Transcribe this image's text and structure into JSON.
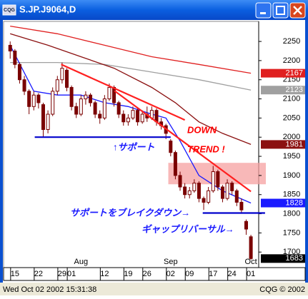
{
  "window": {
    "icon": "CQG",
    "title": "S.JP.J9064,D"
  },
  "status": {
    "left": "Wed Oct 02 2002 15:31:38",
    "right": "CQG © 2002"
  },
  "chart_data": {
    "type": "candlestick",
    "xlim": [
      -1.4,
      52.5
    ],
    "ylim": [
      1665,
      2293
    ],
    "yticks": [
      2250,
      2200,
      2150,
      2100,
      2050,
      2000,
      1950,
      1900,
      1850,
      1800,
      1750,
      1700
    ],
    "xticks": [
      {
        "value": 1,
        "label": "15"
      },
      {
        "value": 6,
        "label": "22"
      },
      {
        "value": 11,
        "label": "29"
      },
      {
        "value": 13,
        "label": "01"
      },
      {
        "value": 20,
        "label": "12"
      },
      {
        "value": 25,
        "label": "19"
      },
      {
        "value": 29,
        "label": "26"
      },
      {
        "value": 34,
        "label": "02"
      },
      {
        "value": 38,
        "label": "09"
      },
      {
        "value": 43,
        "label": "17"
      },
      {
        "value": 47,
        "label": "24"
      },
      {
        "value": 51,
        "label": "01"
      }
    ],
    "month_labels": [
      {
        "value": 15,
        "label": "Aug"
      },
      {
        "value": 34,
        "label": "Sep"
      },
      {
        "value": 51,
        "label": "Oct"
      }
    ],
    "grid": false,
    "candle_color": "#7a0000",
    "open": [
      2240,
      2225,
      2190,
      2150,
      2120,
      2080,
      2110,
      2085,
      2020,
      2060,
      2120,
      2150,
      2175,
      2130,
      2080,
      2060,
      2100,
      2110,
      2090,
      2060,
      2050,
      2100,
      2130,
      2090,
      2060,
      2040,
      2050,
      2070,
      2040,
      2060,
      2050,
      2070,
      2040,
      2030,
      1990,
      1960,
      1900,
      1870,
      1850,
      1860,
      1880,
      1840,
      1830,
      1860,
      1910,
      1870,
      1840,
      1880,
      1860,
      1830,
      1780,
      1740
    ],
    "high": [
      2250,
      2230,
      2195,
      2160,
      2125,
      2120,
      2115,
      2090,
      2070,
      2130,
      2160,
      2195,
      2180,
      2135,
      2090,
      2110,
      2120,
      2115,
      2095,
      2070,
      2110,
      2140,
      2135,
      2095,
      2070,
      2060,
      2080,
      2075,
      2070,
      2080,
      2080,
      2075,
      2050,
      2035,
      1995,
      1965,
      1910,
      1880,
      1870,
      1890,
      1885,
      1845,
      1870,
      1925,
      1915,
      1875,
      1890,
      1885,
      1865,
      1840,
      1785,
      1745
    ],
    "low": [
      2205,
      2180,
      2140,
      2110,
      2060,
      2070,
      2075,
      2000,
      2010,
      2055,
      2110,
      2140,
      2120,
      2070,
      2050,
      2055,
      2085,
      2080,
      2050,
      2035,
      2045,
      2095,
      2080,
      2050,
      2030,
      2030,
      2045,
      2030,
      2035,
      2040,
      2045,
      2030,
      2020,
      1995,
      1950,
      1890,
      1860,
      1840,
      1840,
      1855,
      1830,
      1810,
      1825,
      1855,
      1860,
      1830,
      1835,
      1850,
      1820,
      1800,
      1745,
      1680
    ],
    "close": [
      2225,
      2190,
      2150,
      2120,
      2080,
      2110,
      2090,
      2020,
      2060,
      2120,
      2150,
      2180,
      2130,
      2080,
      2060,
      2100,
      2110,
      2090,
      2060,
      2050,
      2100,
      2130,
      2090,
      2060,
      2040,
      2050,
      2070,
      2040,
      2060,
      2050,
      2070,
      2040,
      2030,
      2010,
      1960,
      1900,
      1870,
      1850,
      1860,
      1880,
      1840,
      1830,
      1860,
      1910,
      1870,
      1840,
      1880,
      1860,
      1830,
      1810,
      1760,
      1683
    ],
    "close_box_color": "#000000",
    "lines": [
      {
        "color": "#e02020",
        "x": [
          0,
          10,
          20,
          30,
          40,
          51
        ],
        "values": [
          2290,
          2270,
          2240,
          2210,
          2190,
          2167
        ]
      },
      {
        "color": "#a0a0a0",
        "x": [
          0,
          10,
          20,
          30,
          40,
          51
        ],
        "values": [
          2195,
          2195,
          2190,
          2170,
          2150,
          2123
        ]
      },
      {
        "color": "#8b1010",
        "x": [
          0,
          8,
          15,
          22,
          30,
          35,
          40,
          45,
          51
        ],
        "values": [
          2270,
          2240,
          2210,
          2180,
          2130,
          2090,
          2040,
          2010,
          1981
        ]
      },
      {
        "color": "#1a1aff",
        "x": [
          0,
          5,
          10,
          15,
          20,
          25,
          30,
          33,
          36,
          40,
          45,
          51
        ],
        "values": [
          2240,
          2120,
          2110,
          2110,
          2090,
          2080,
          2060,
          2050,
          1990,
          1900,
          1860,
          1828
        ]
      }
    ],
    "trendlines": [
      {
        "color": "#ff2020",
        "x": [
          10.8,
          37
        ],
        "values": [
          2190,
          2045
        ]
      },
      {
        "color": "#ff2020",
        "x": [
          22.1,
          51
        ],
        "values": [
          2121,
          1858
        ]
      },
      {
        "color": "#0000cc",
        "x": [
          5.2,
          34
        ],
        "values": [
          2000,
          2000
        ]
      },
      {
        "color": "#0000cc",
        "x": [
          40.8,
          54
        ],
        "values": [
          1802,
          1802
        ]
      }
    ],
    "highlight": {
      "color": "#f6a0a0",
      "x0": 33.5,
      "low": 1877,
      "high": 1933
    },
    "annotations": [
      {
        "text": "DOWN",
        "color": "#ff0000"
      },
      {
        "text": "TREND !",
        "color": "#ff0000"
      },
      {
        "text": "↑サポート",
        "color": "#1a1aff"
      },
      {
        "text": "サポートをブレイクダウン→",
        "color": "#1a1aff"
      },
      {
        "text": "ギャップリバーサル→",
        "color": "#1a1aff"
      }
    ]
  }
}
